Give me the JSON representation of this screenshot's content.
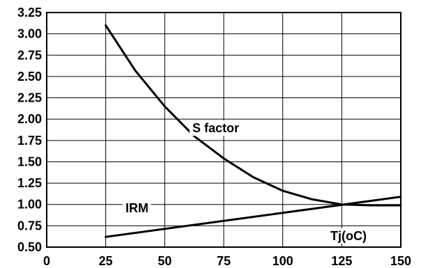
{
  "chart_data": {
    "type": "line",
    "title": "",
    "xlabel": "Tj(oC)",
    "ylabel": "",
    "xlim": [
      0,
      150
    ],
    "ylim": [
      0.5,
      3.25
    ],
    "xticks": [
      "0",
      "25",
      "50",
      "75",
      "100",
      "125",
      "150"
    ],
    "yticks": [
      "0.50",
      "0.75",
      "1.00",
      "1.25",
      "1.50",
      "1.75",
      "2.00",
      "2.25",
      "2.50",
      "2.75",
      "3.00",
      "3.25"
    ],
    "grid": true,
    "series": [
      {
        "name": "S factor",
        "x": [
          25,
          37.5,
          50,
          62.5,
          75,
          87.5,
          100,
          112.5,
          125,
          137.5,
          150
        ],
        "y": [
          3.1,
          2.57,
          2.15,
          1.8,
          1.54,
          1.32,
          1.16,
          1.06,
          1.0,
          0.99,
          0.99
        ]
      },
      {
        "name": "IRM",
        "x": [
          25,
          150
        ],
        "y": [
          0.62,
          1.09
        ]
      }
    ]
  }
}
